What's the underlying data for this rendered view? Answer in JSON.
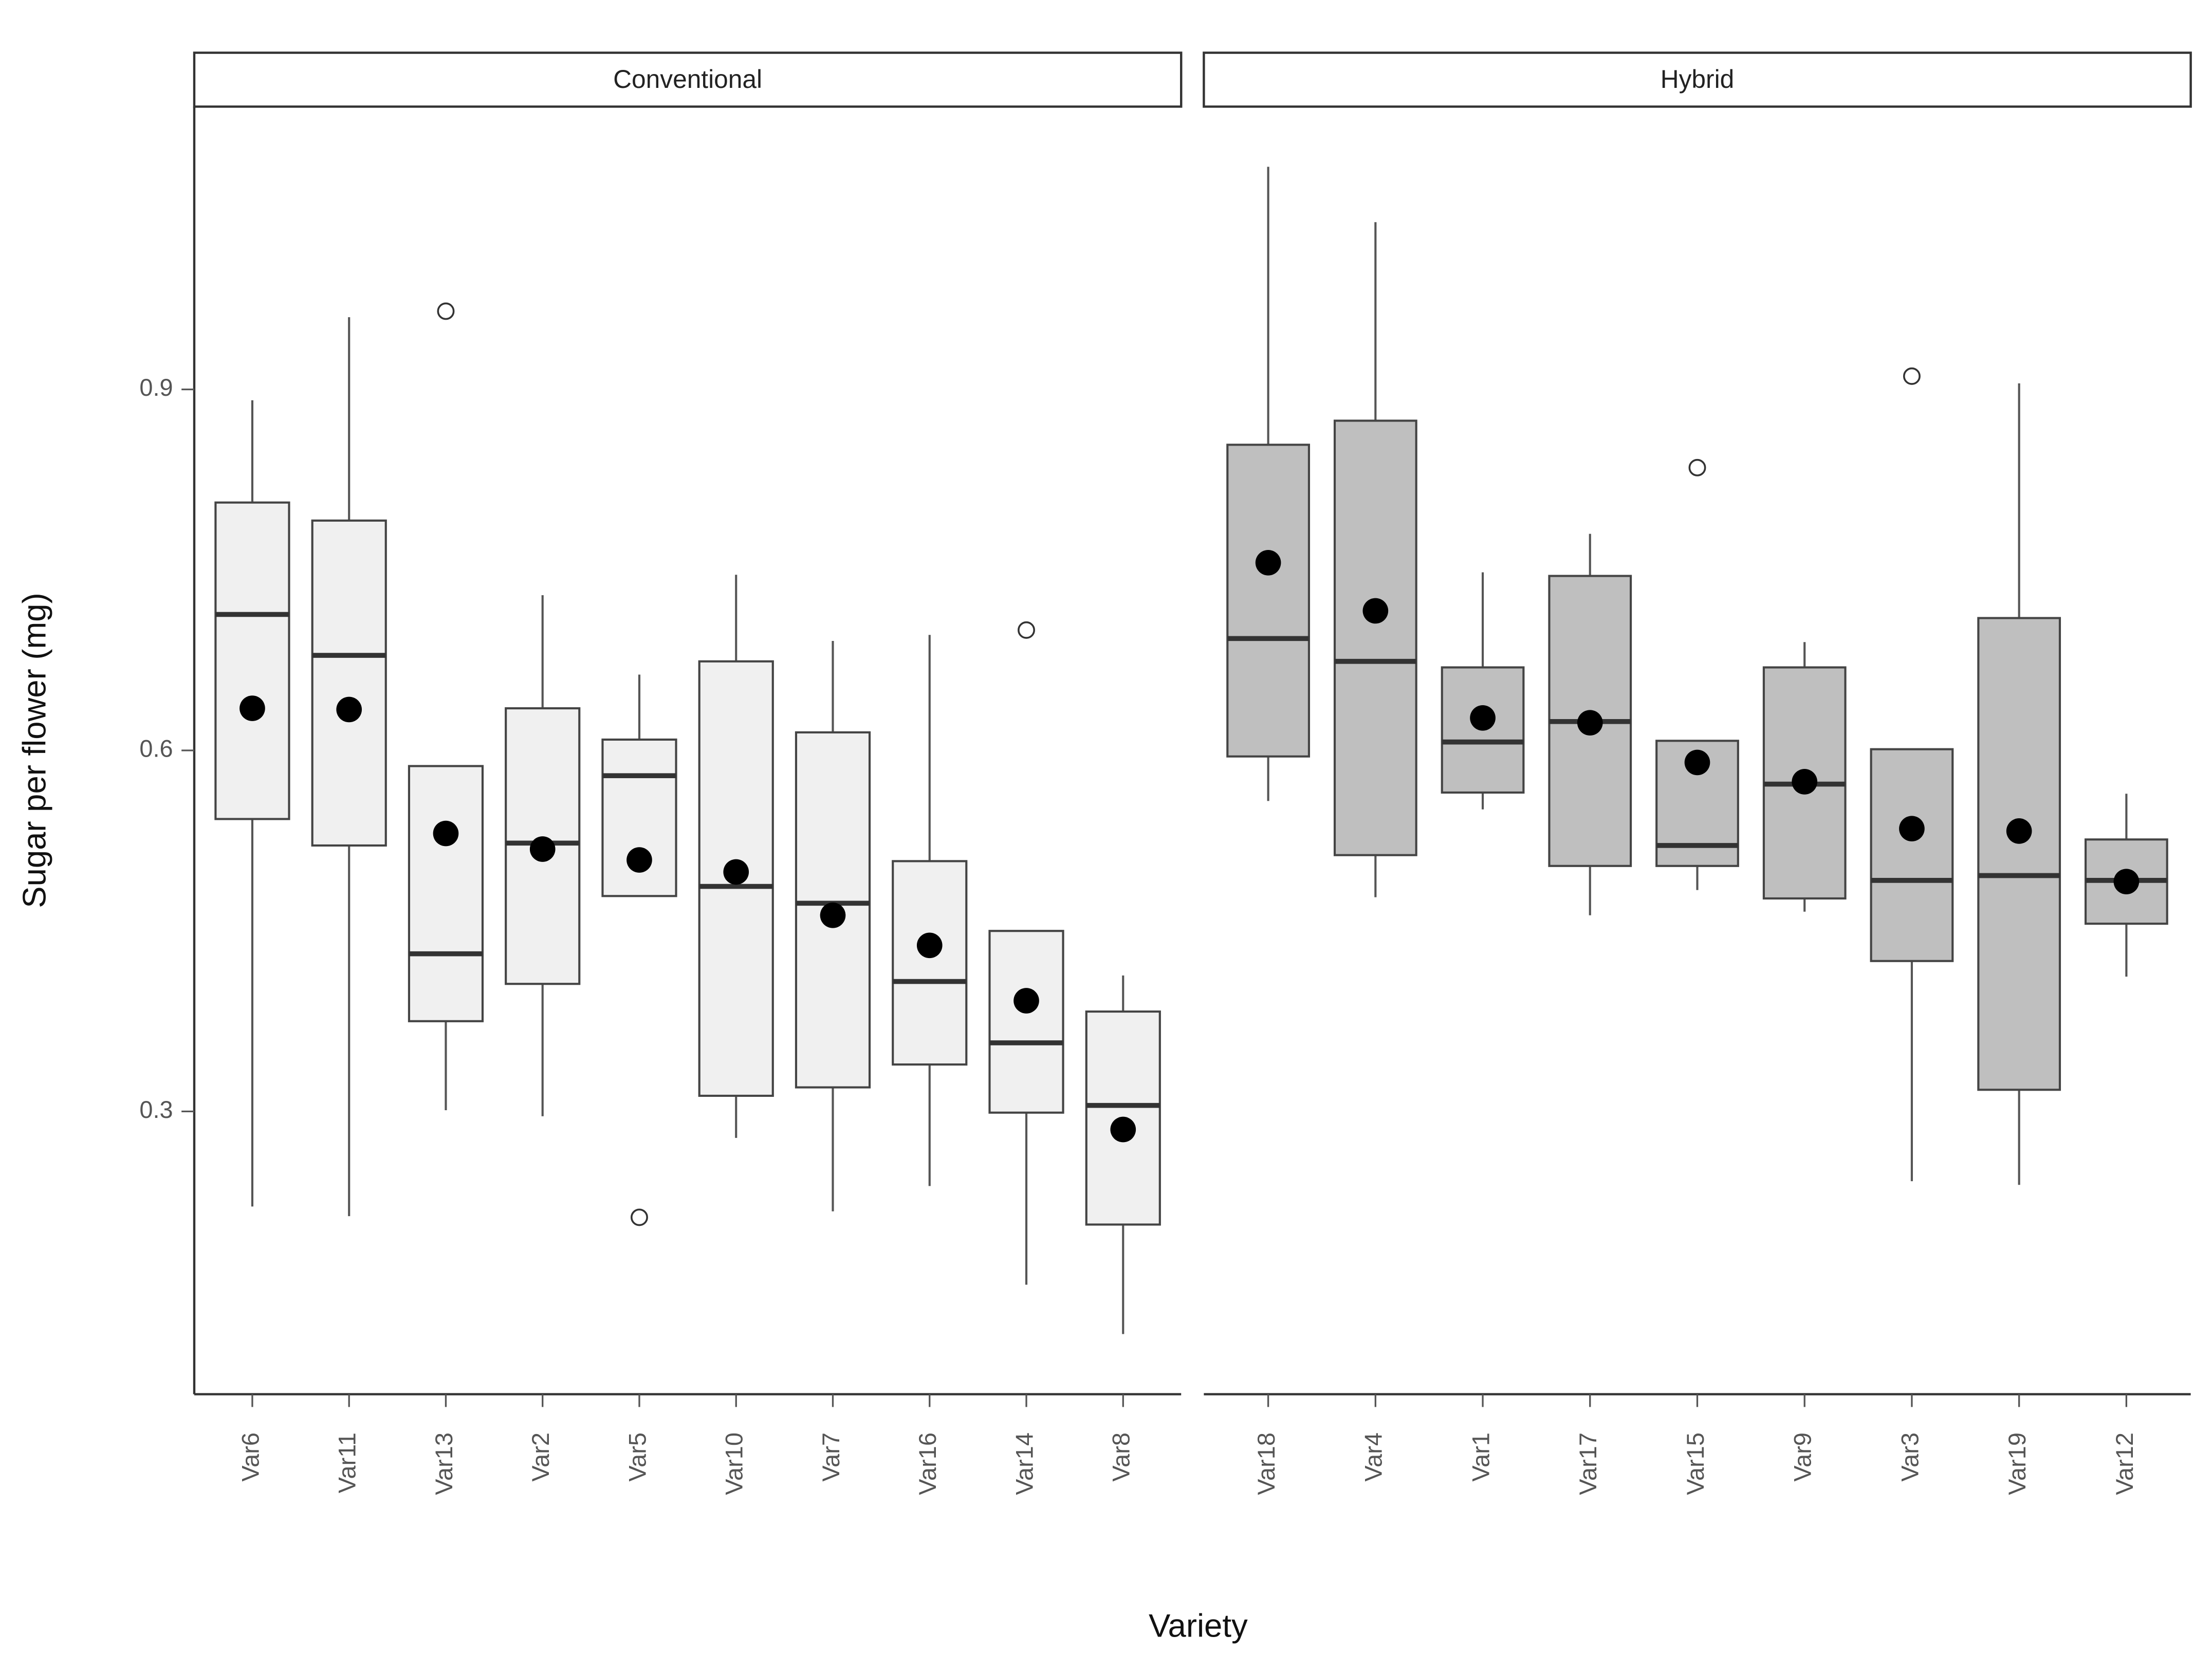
{
  "chart_data": {
    "type": "box",
    "ylabel": "Sugar per flower (mg)",
    "xlabel": "Variety",
    "ylim": [
      0.065,
      1.135
    ],
    "yticks": [
      0.3,
      0.6,
      0.9
    ],
    "panels": [
      {
        "title": "Conventional",
        "color": "#f0f0f0",
        "categories": [
          "Var6",
          "Var11",
          "Var13",
          "Var2",
          "Var5",
          "Var10",
          "Var7",
          "Var16",
          "Var14",
          "Var8"
        ],
        "boxes": [
          {
            "low": 0.221,
            "q1": 0.543,
            "median": 0.713,
            "q3": 0.806,
            "high": 0.891,
            "mean": 0.635
          },
          {
            "low": 0.213,
            "q1": 0.521,
            "median": 0.679,
            "q3": 0.791,
            "high": 0.96,
            "mean": 0.634
          },
          {
            "low": 0.301,
            "q1": 0.375,
            "median": 0.431,
            "q3": 0.587,
            "high": 0.587,
            "mean": 0.531,
            "outliers": [
              0.965
            ]
          },
          {
            "low": 0.296,
            "q1": 0.406,
            "median": 0.523,
            "q3": 0.635,
            "high": 0.729,
            "mean": 0.518
          },
          {
            "low": 0.479,
            "q1": 0.479,
            "median": 0.579,
            "q3": 0.609,
            "high": 0.663,
            "mean": 0.509,
            "outliers": [
              0.212
            ]
          },
          {
            "low": 0.278,
            "q1": 0.313,
            "median": 0.487,
            "q3": 0.674,
            "high": 0.746,
            "mean": 0.499
          },
          {
            "low": 0.217,
            "q1": 0.32,
            "median": 0.473,
            "q3": 0.615,
            "high": 0.691,
            "mean": 0.463
          },
          {
            "low": 0.238,
            "q1": 0.339,
            "median": 0.408,
            "q3": 0.508,
            "high": 0.696,
            "mean": 0.438
          },
          {
            "low": 0.156,
            "q1": 0.299,
            "median": 0.357,
            "q3": 0.45,
            "high": 0.45,
            "mean": 0.392,
            "outliers": [
              0.7
            ]
          },
          {
            "low": 0.115,
            "q1": 0.206,
            "median": 0.305,
            "q3": 0.383,
            "high": 0.413,
            "mean": 0.285
          }
        ]
      },
      {
        "title": "Hybrid",
        "color": "#bfbfbf",
        "categories": [
          "Var18",
          "Var4",
          "Var1",
          "Var17",
          "Var15",
          "Var9",
          "Var3",
          "Var19",
          "Var12"
        ],
        "boxes": [
          {
            "low": 0.558,
            "q1": 0.595,
            "median": 0.693,
            "q3": 0.854,
            "high": 1.085,
            "mean": 0.756
          },
          {
            "low": 0.478,
            "q1": 0.513,
            "median": 0.674,
            "q3": 0.874,
            "high": 1.039,
            "mean": 0.716
          },
          {
            "low": 0.551,
            "q1": 0.565,
            "median": 0.607,
            "q3": 0.669,
            "high": 0.748,
            "mean": 0.627
          },
          {
            "low": 0.463,
            "q1": 0.504,
            "median": 0.624,
            "q3": 0.745,
            "high": 0.78,
            "mean": 0.623
          },
          {
            "low": 0.484,
            "q1": 0.504,
            "median": 0.521,
            "q3": 0.608,
            "high": 0.608,
            "mean": 0.59,
            "outliers": [
              0.835
            ]
          },
          {
            "low": 0.466,
            "q1": 0.477,
            "median": 0.572,
            "q3": 0.669,
            "high": 0.69,
            "mean": 0.574
          },
          {
            "low": 0.242,
            "q1": 0.425,
            "median": 0.492,
            "q3": 0.601,
            "high": 0.601,
            "mean": 0.535,
            "outliers": [
              0.911
            ]
          },
          {
            "low": 0.239,
            "q1": 0.318,
            "median": 0.496,
            "q3": 0.71,
            "high": 0.905,
            "mean": 0.533
          },
          {
            "low": 0.412,
            "q1": 0.456,
            "median": 0.492,
            "q3": 0.526,
            "high": 0.564,
            "mean": 0.491
          }
        ]
      }
    ]
  }
}
